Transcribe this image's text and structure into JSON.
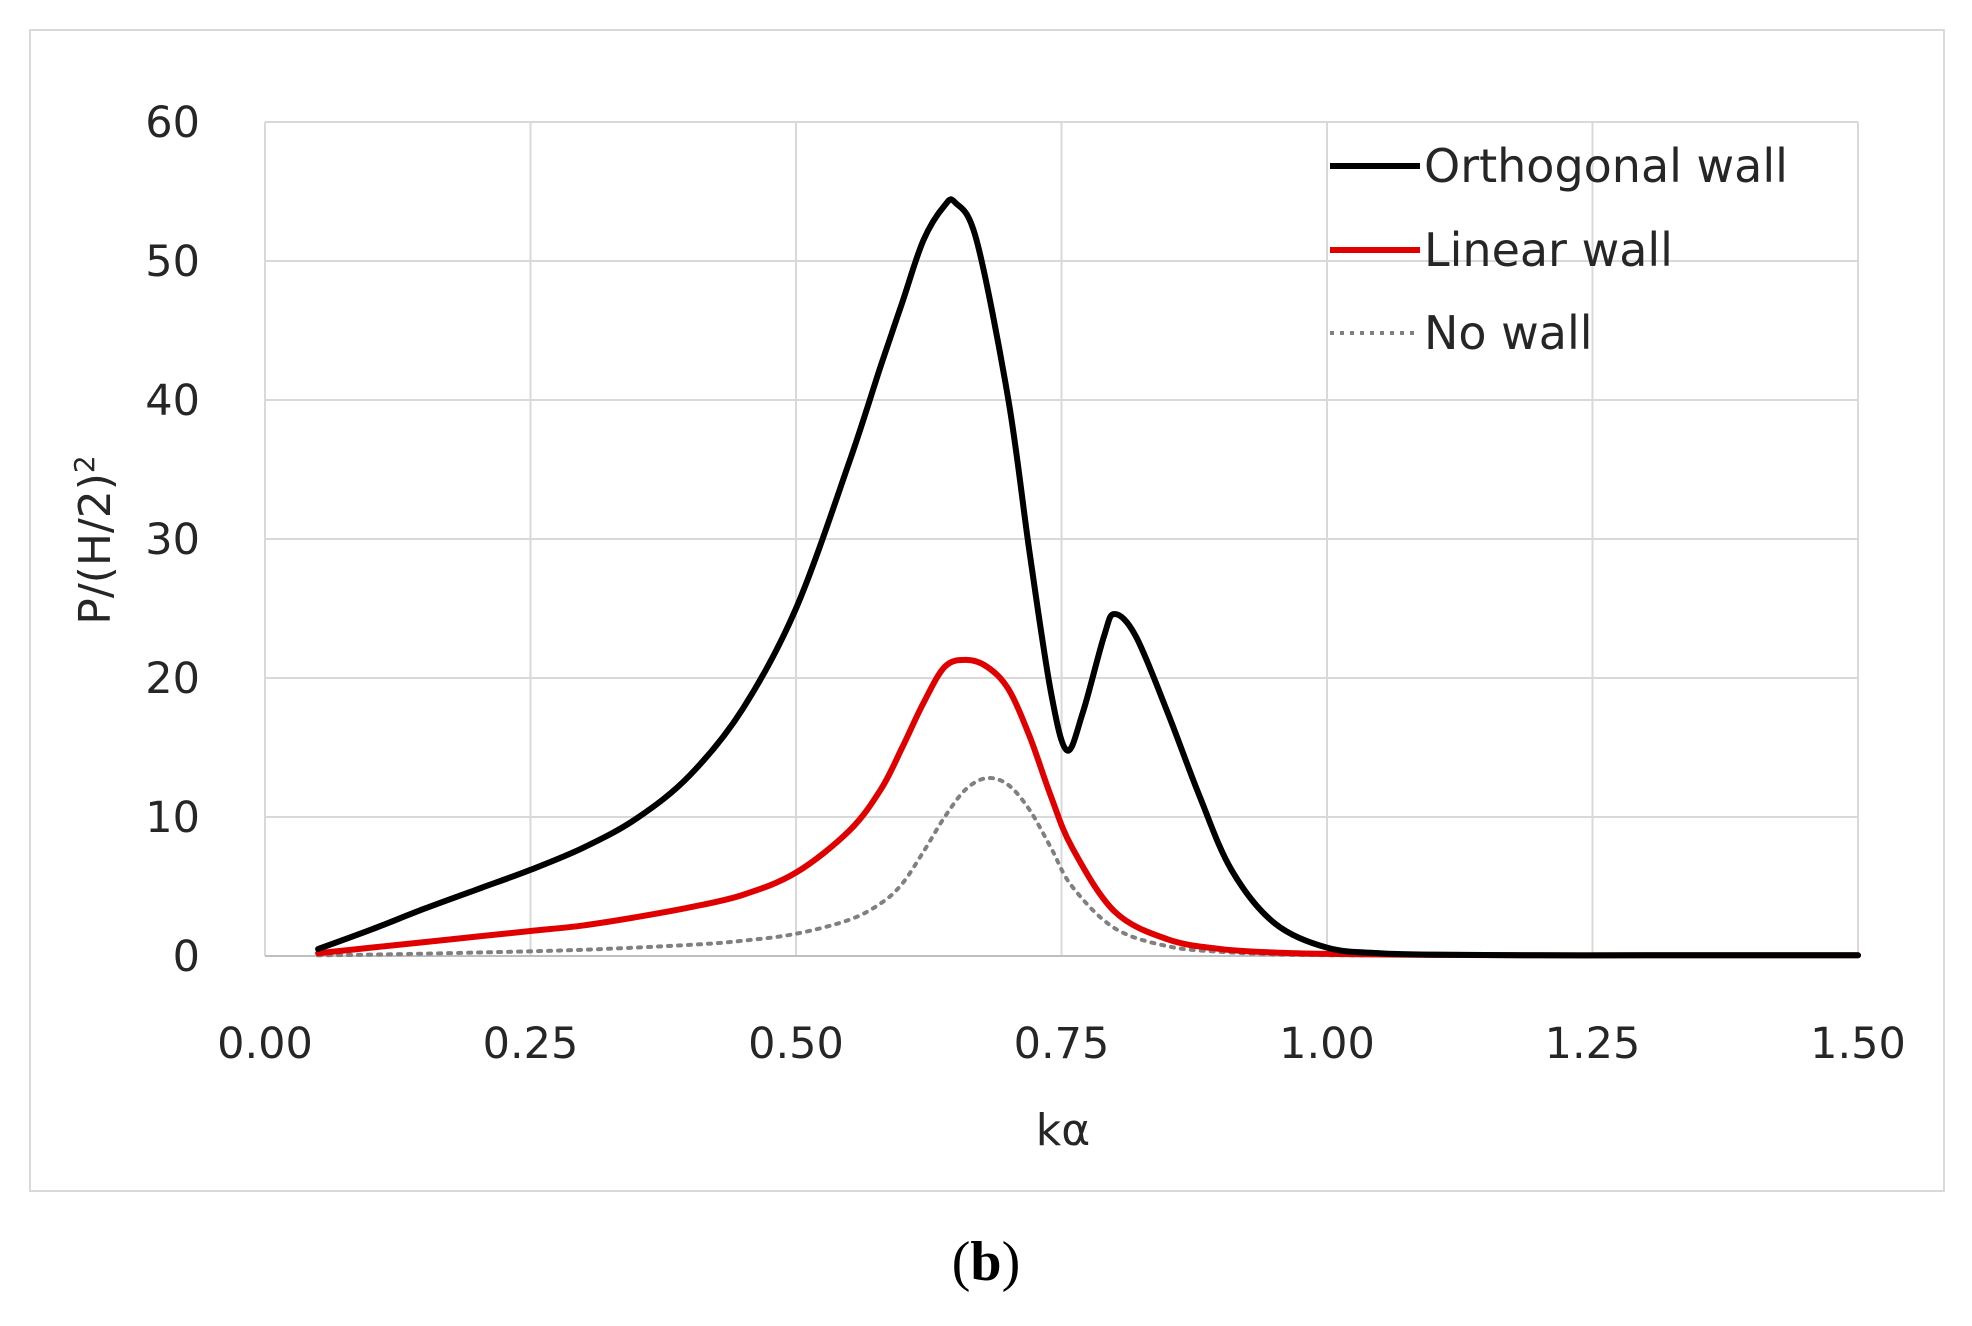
{
  "chart_data": {
    "type": "line",
    "title": "",
    "xlabel": "kα",
    "ylabel_base": "P/(H/2)",
    "ylabel_sup": "2",
    "xlim": [
      0.0,
      1.5
    ],
    "ylim": [
      0,
      60
    ],
    "xticks": [
      "0.00",
      "0.25",
      "0.50",
      "0.75",
      "1.00",
      "1.25",
      "1.50"
    ],
    "yticks": [
      "0",
      "10",
      "20",
      "30",
      "40",
      "50",
      "60"
    ],
    "grid": true,
    "legend_position": "top-right",
    "series": [
      {
        "name": "Orthogonal wall",
        "color": "#000000",
        "style": "solid",
        "x": [
          0.05,
          0.1,
          0.15,
          0.2,
          0.25,
          0.3,
          0.35,
          0.4,
          0.45,
          0.5,
          0.55,
          0.58,
          0.6,
          0.62,
          0.64,
          0.65,
          0.67,
          0.7,
          0.72,
          0.74,
          0.755,
          0.77,
          0.79,
          0.8,
          0.82,
          0.85,
          0.88,
          0.91,
          0.95,
          1.0,
          1.05,
          1.1,
          1.2,
          1.3,
          1.4,
          1.5
        ],
        "y": [
          0.5,
          1.9,
          3.4,
          4.8,
          6.2,
          7.8,
          9.9,
          13.0,
          17.8,
          25.0,
          35.5,
          42.5,
          47.0,
          51.5,
          54.0,
          54.2,
          51.5,
          40.0,
          29.0,
          19.0,
          14.8,
          17.5,
          23.0,
          24.6,
          23.0,
          17.5,
          11.5,
          6.2,
          2.4,
          0.6,
          0.2,
          0.1,
          0.05,
          0.05,
          0.05,
          0.05
        ]
      },
      {
        "name": "Linear wall",
        "color": "#e00000",
        "style": "solid",
        "x": [
          0.05,
          0.1,
          0.15,
          0.2,
          0.25,
          0.3,
          0.35,
          0.4,
          0.45,
          0.5,
          0.55,
          0.58,
          0.6,
          0.62,
          0.64,
          0.66,
          0.68,
          0.7,
          0.72,
          0.74,
          0.76,
          0.8,
          0.85,
          0.9,
          0.95,
          1.0,
          1.1,
          1.2,
          1.3,
          1.4,
          1.5
        ],
        "y": [
          0.2,
          0.6,
          1.0,
          1.4,
          1.8,
          2.2,
          2.8,
          3.5,
          4.4,
          6.0,
          9.0,
          12.0,
          15.0,
          18.2,
          20.8,
          21.3,
          20.8,
          19.2,
          15.8,
          11.5,
          7.8,
          3.2,
          1.2,
          0.5,
          0.25,
          0.15,
          0.08,
          0.05,
          0.05,
          0.05,
          0.05
        ]
      },
      {
        "name": "No wall",
        "color": "#808080",
        "style": "dotted",
        "x": [
          0.05,
          0.1,
          0.2,
          0.3,
          0.4,
          0.45,
          0.5,
          0.55,
          0.58,
          0.6,
          0.62,
          0.64,
          0.66,
          0.68,
          0.7,
          0.72,
          0.74,
          0.76,
          0.8,
          0.85,
          0.9,
          0.95,
          1.0,
          1.1,
          1.2,
          1.5
        ],
        "y": [
          0.05,
          0.1,
          0.25,
          0.45,
          0.8,
          1.1,
          1.6,
          2.6,
          3.8,
          5.2,
          7.5,
          10.0,
          12.0,
          12.8,
          12.3,
          10.5,
          7.8,
          5.0,
          2.0,
          0.7,
          0.3,
          0.12,
          0.06,
          0.03,
          0.02,
          0.02
        ]
      }
    ]
  },
  "figure": {
    "label_open": "(",
    "label_letter": "b",
    "label_close": ")"
  }
}
